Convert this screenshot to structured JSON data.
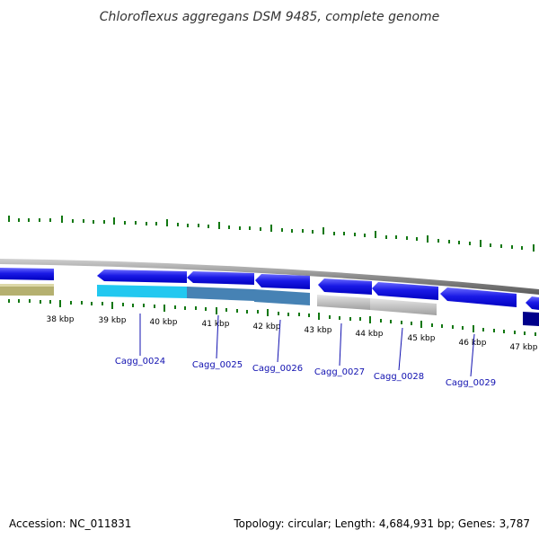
{
  "title": "Chloroflexus aggregans DSM 9485, complete genome",
  "ruler_labels": [
    "38 kbp",
    "39 kbp",
    "40 kbp",
    "41 kbp",
    "42 kbp",
    "43 kbp",
    "44 kbp",
    "45 kbp",
    "46 kbp",
    "47 kbp"
  ],
  "genes": [
    {
      "label": "Cagg_0024",
      "color": "#22c8f0"
    },
    {
      "label": "Cagg_0025",
      "color": "#4682b4"
    },
    {
      "label": "Cagg_0026",
      "color": "#4682b4"
    },
    {
      "label": "Cagg_0027",
      "color": "#c0c0c0"
    },
    {
      "label": "Cagg_0028",
      "color": "#c0c0c0"
    },
    {
      "label": "Cagg_0029",
      "color": "#1010e0"
    }
  ],
  "colors": {
    "forward_track": "#1010e0",
    "backbone": "#8c8c8c",
    "tick": "#117711",
    "leftmost_feature": "#b5b070",
    "dark_feature": "#00008b",
    "label_line": "#1010b0"
  },
  "footer": {
    "accession": "Accession: NC_011831",
    "topology": "Topology: circular; Length: 4,684,931 bp; Genes: 3,787"
  }
}
